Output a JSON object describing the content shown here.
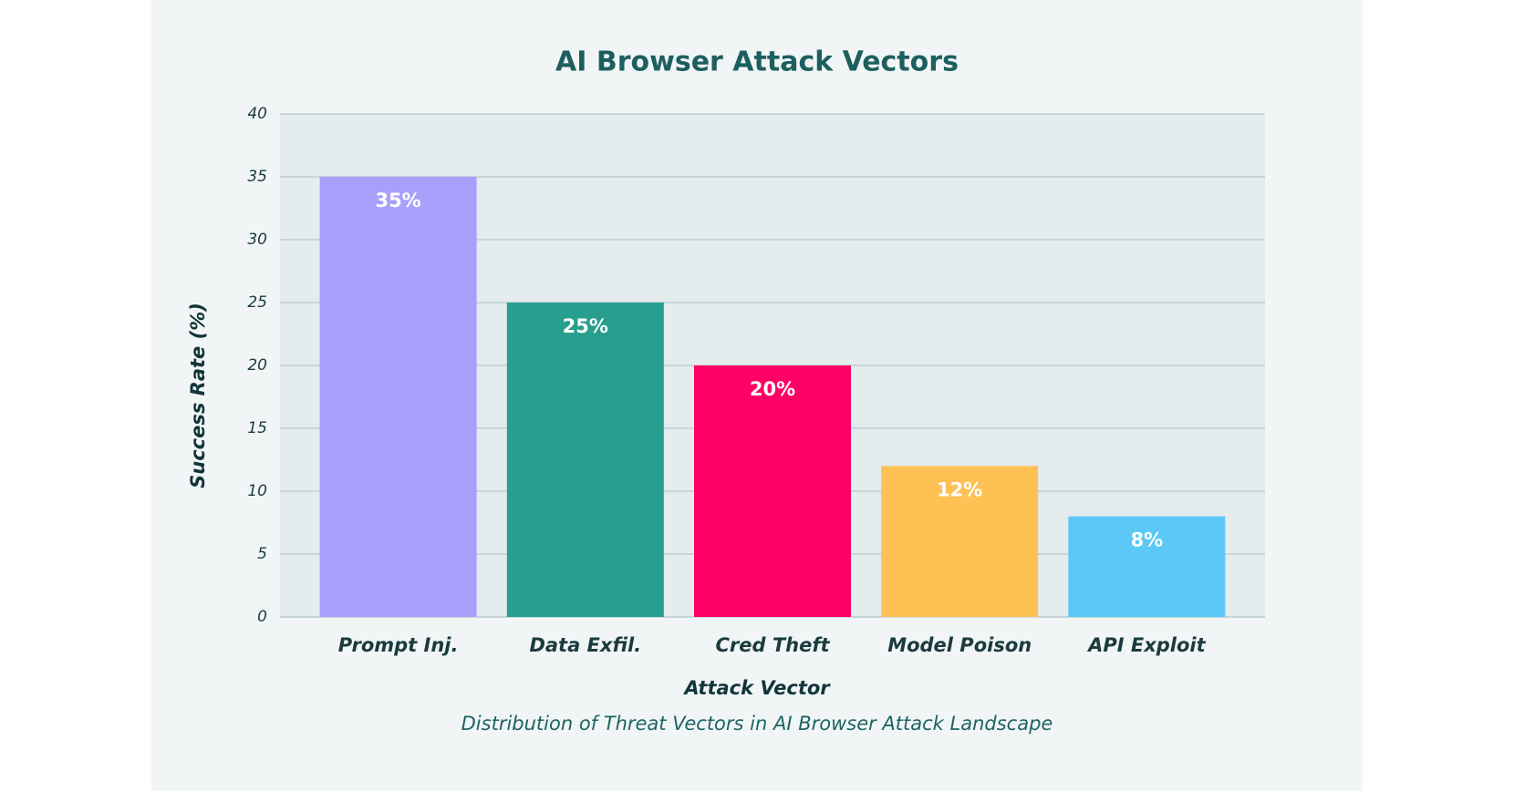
{
  "chart_data": {
    "type": "bar",
    "title": "AI Browser Attack Vectors",
    "categories": [
      "Prompt Inj.",
      "Data Exfil.",
      "Cred Theft",
      "Model Poison",
      "API Exploit"
    ],
    "values": [
      35,
      25,
      20,
      12,
      8
    ],
    "value_labels": [
      "35%",
      "25%",
      "20%",
      "12%",
      "8%"
    ],
    "colors": [
      "#a99ffb",
      "#279e8e",
      "#ff0066",
      "#ffc054",
      "#5bc8f5"
    ],
    "x_label": "Attack Vector",
    "y_label": "Success Rate (%)",
    "caption": "Distribution of Threat Vectors in AI Browser Attack Landscape",
    "ylim": [
      0,
      40
    ],
    "yticks": [
      0,
      5,
      10,
      15,
      20,
      25,
      30,
      35,
      40
    ],
    "grid": true
  }
}
